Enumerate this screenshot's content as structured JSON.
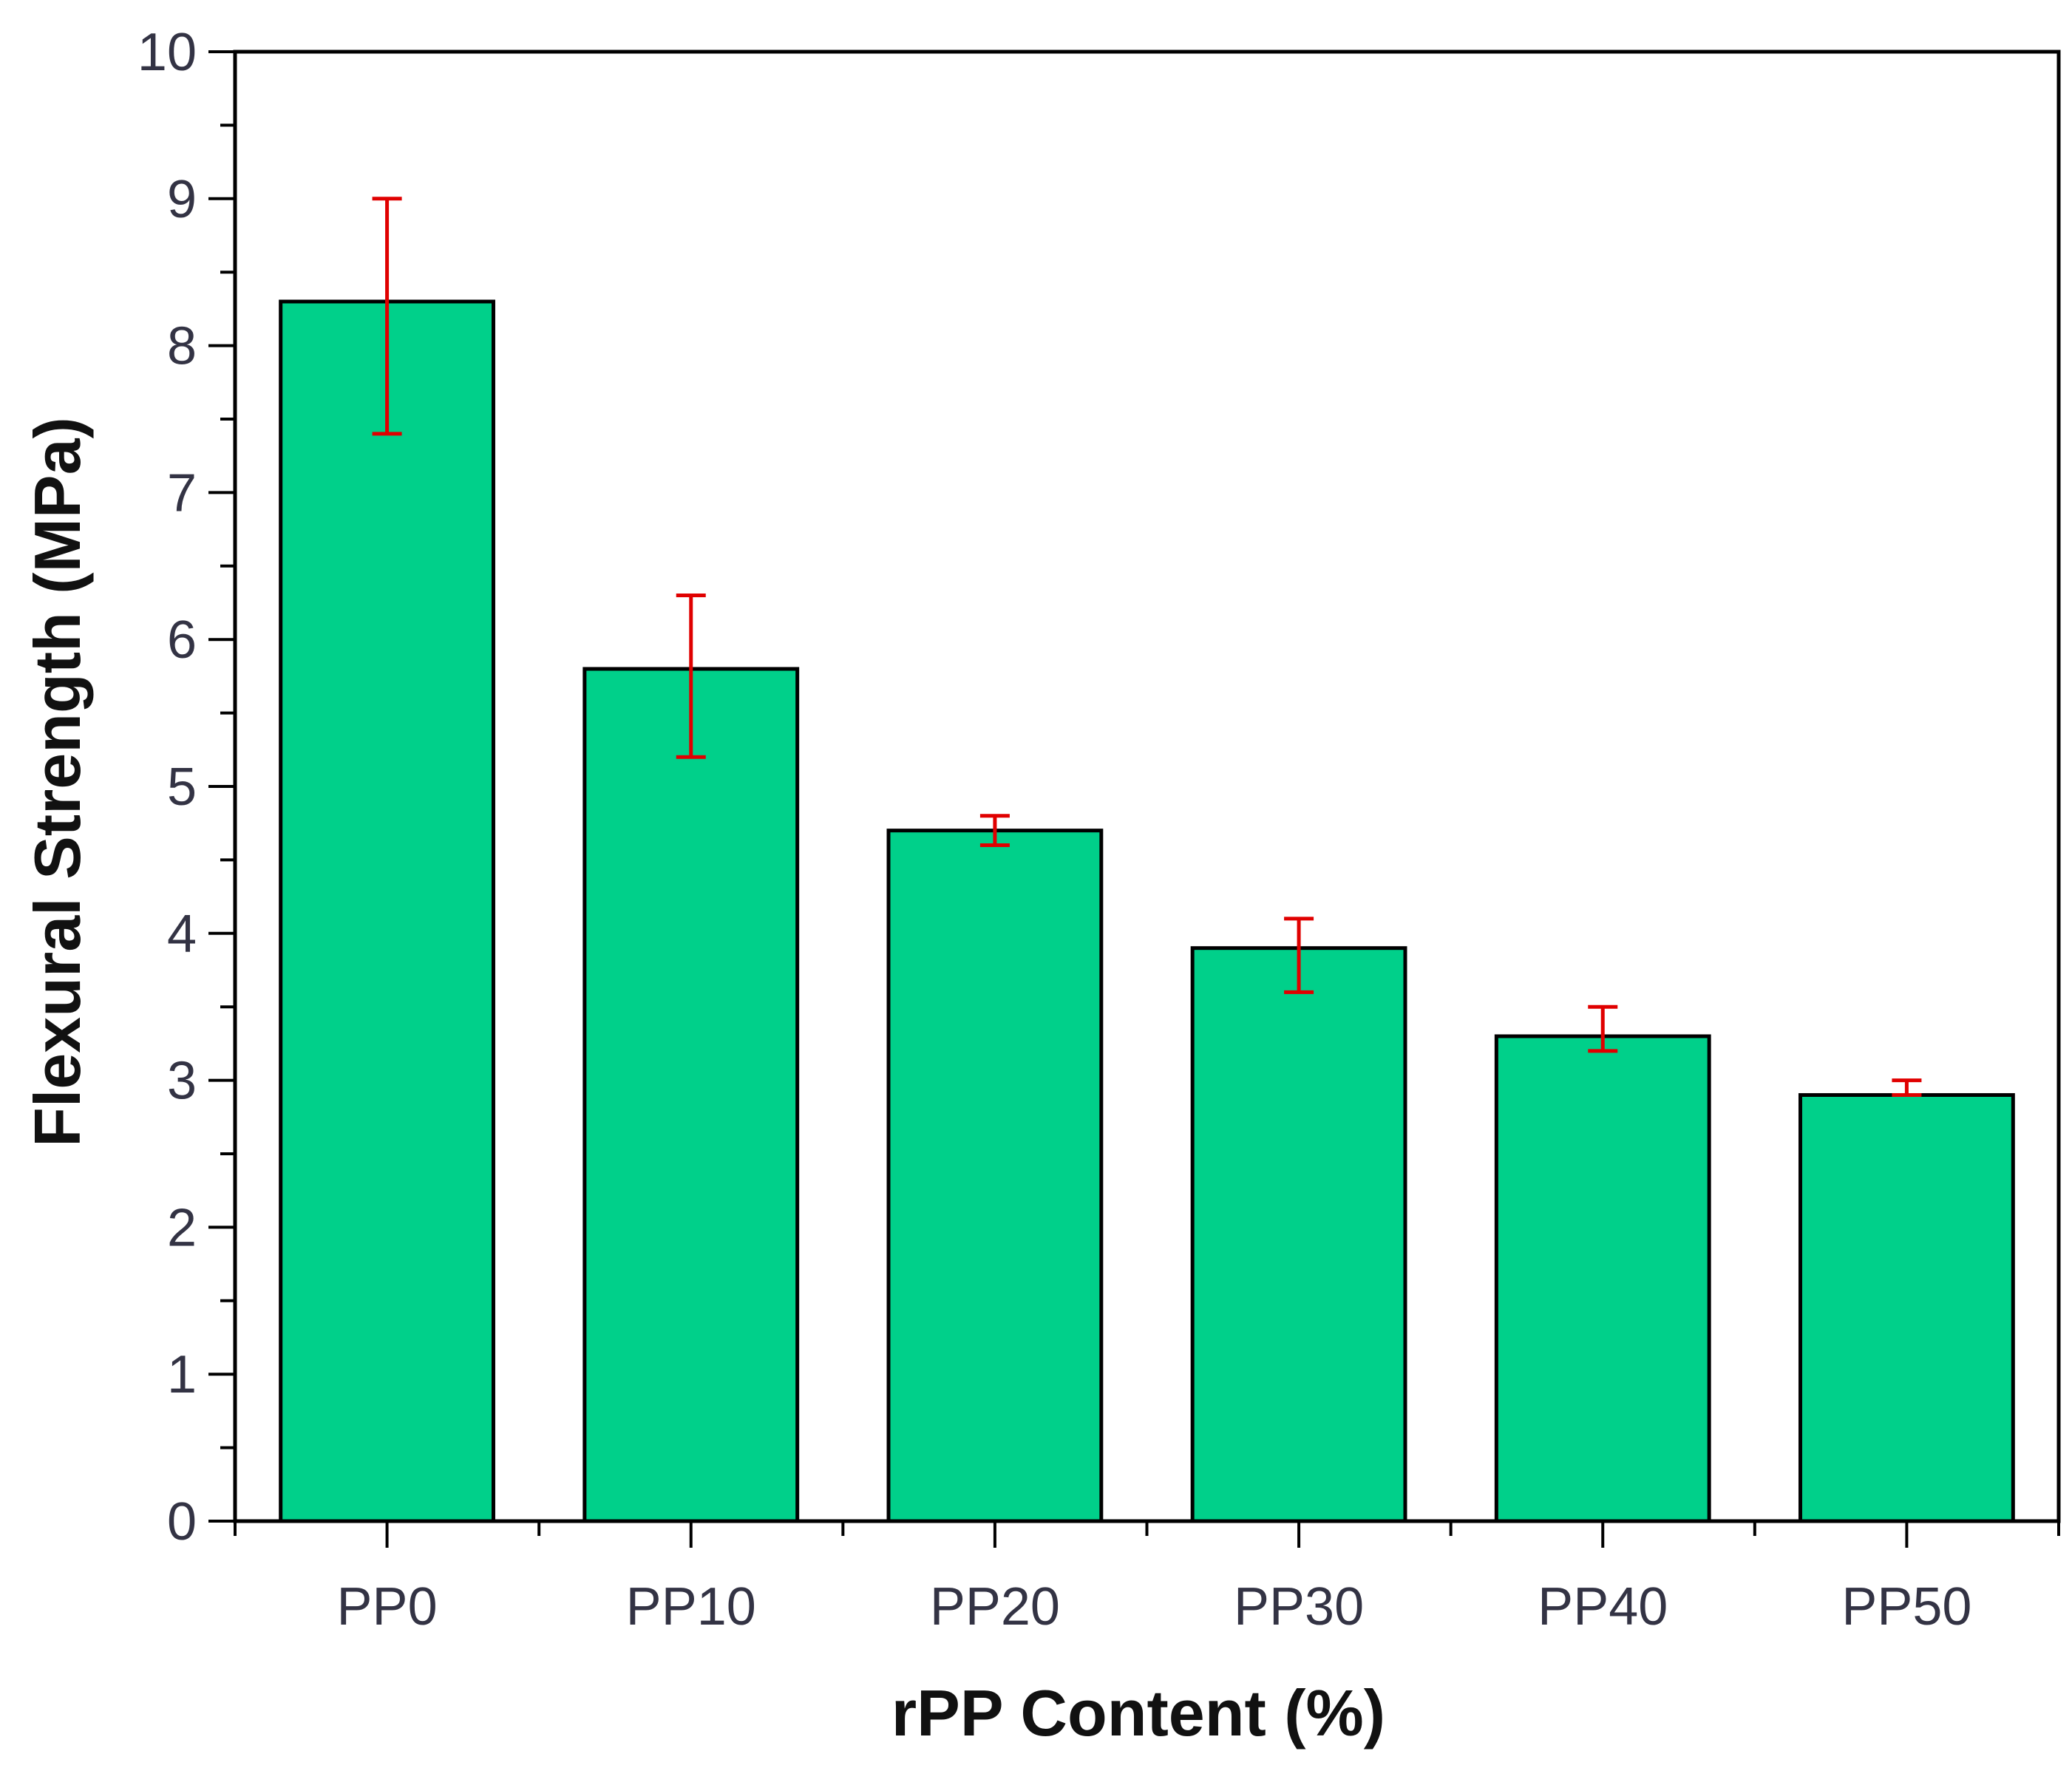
{
  "chart_data": {
    "type": "bar",
    "categories": [
      "PP0",
      "PP10",
      "PP20",
      "PP30",
      "PP40",
      "PP50"
    ],
    "values": [
      8.3,
      5.8,
      4.7,
      3.9,
      3.3,
      2.9
    ],
    "error_low": [
      7.4,
      5.2,
      4.6,
      3.6,
      3.2,
      2.9
    ],
    "error_high": [
      9.0,
      6.3,
      4.8,
      4.1,
      3.5,
      3.0
    ],
    "title": "",
    "xlabel": "rPP Content (%)",
    "ylabel": "Flexural Strength (MPa)",
    "ylim": [
      0,
      10
    ],
    "y_ticks": [
      "0",
      "1",
      "2",
      "3",
      "4",
      "5",
      "6",
      "7",
      "8",
      "9",
      "10"
    ],
    "grid": false,
    "colors": {
      "bar": "#00D08A",
      "bar_edge": "#000000",
      "error_bar": "#E00000",
      "axis": "#000000"
    }
  }
}
